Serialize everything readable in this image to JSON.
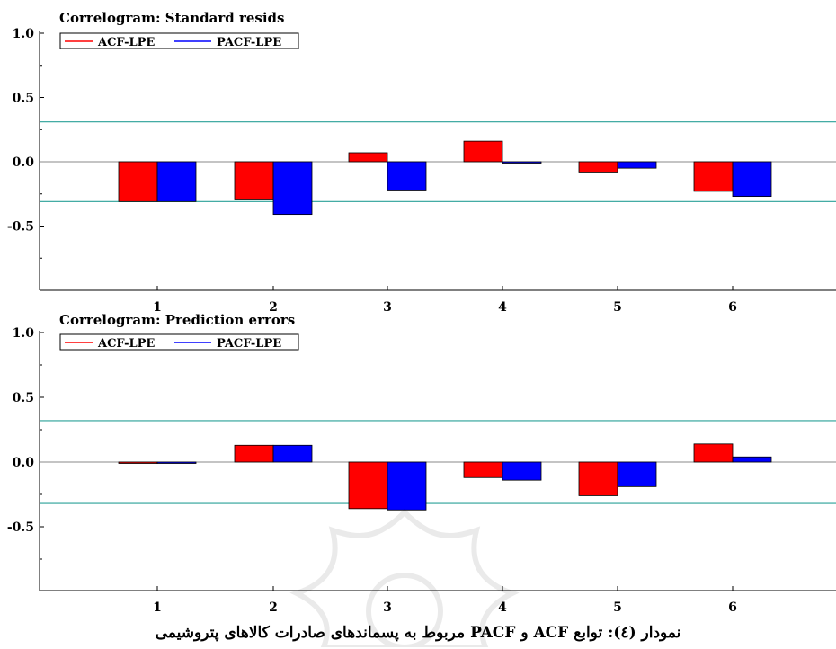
{
  "chart_data": [
    {
      "type": "bar",
      "title": "Correlogram: Standard resids",
      "categories": [
        "1",
        "2",
        "3",
        "4",
        "5",
        "6"
      ],
      "series": [
        {
          "name": "ACF-LPE",
          "color": "#ff0000",
          "values": [
            -0.31,
            -0.29,
            0.07,
            0.16,
            -0.08,
            -0.23
          ]
        },
        {
          "name": "PACF-LPE",
          "color": "#0000ff",
          "values": [
            -0.31,
            -0.41,
            -0.22,
            -0.01,
            -0.05,
            -0.27
          ]
        }
      ],
      "ylim": [
        -1.0,
        1.0
      ],
      "yticks": [
        "1.0",
        "0.5",
        "0.0",
        "-0.5"
      ],
      "confidence_band": [
        0.31,
        -0.31
      ],
      "band_color": "#2aa198",
      "legend": "top-left",
      "grid": false
    },
    {
      "type": "bar",
      "title": "Correlogram: Prediction errors",
      "categories": [
        "1",
        "2",
        "3",
        "4",
        "5",
        "6"
      ],
      "series": [
        {
          "name": "ACF-LPE",
          "color": "#ff0000",
          "values": [
            0.0,
            0.13,
            -0.36,
            -0.12,
            -0.26,
            0.14
          ]
        },
        {
          "name": "PACF-LPE",
          "color": "#0000ff",
          "values": [
            0.0,
            0.13,
            -0.37,
            -0.14,
            -0.19,
            0.04
          ]
        }
      ],
      "ylim": [
        -1.0,
        1.0
      ],
      "yticks": [
        "1.0",
        "0.5",
        "0.0",
        "-0.5"
      ],
      "confidence_band": [
        0.32,
        -0.32
      ],
      "band_color": "#2aa198",
      "legend": "top-left",
      "grid": false
    }
  ],
  "caption": "نمودار (٤): توابع  ACF و PACF مربوط به پسماندهای صادرات کالاهای پتروشیمی"
}
